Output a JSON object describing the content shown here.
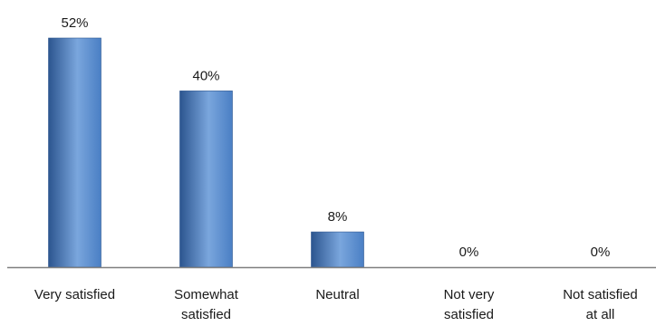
{
  "chart_data": {
    "type": "bar",
    "categories": [
      [
        "Very satisfied"
      ],
      [
        "Somewhat",
        "satisfied"
      ],
      [
        "Neutral"
      ],
      [
        "Not very",
        "satisfied"
      ],
      [
        "Not satisfied",
        "at all"
      ]
    ],
    "values": [
      52,
      40,
      8,
      0,
      0
    ],
    "value_labels": [
      "52%",
      "40%",
      "8%",
      "0%",
      "0%"
    ],
    "unit": "%",
    "title": "",
    "xlabel": "",
    "ylabel": "",
    "ylim": [
      0,
      52
    ],
    "grid": false,
    "legend": "none",
    "colors": {
      "bar_light": "#7aa6dd",
      "bar_mid": "#4a7fc4",
      "bar_dark": "#2c558f",
      "axis": "#7f7f7f"
    }
  }
}
